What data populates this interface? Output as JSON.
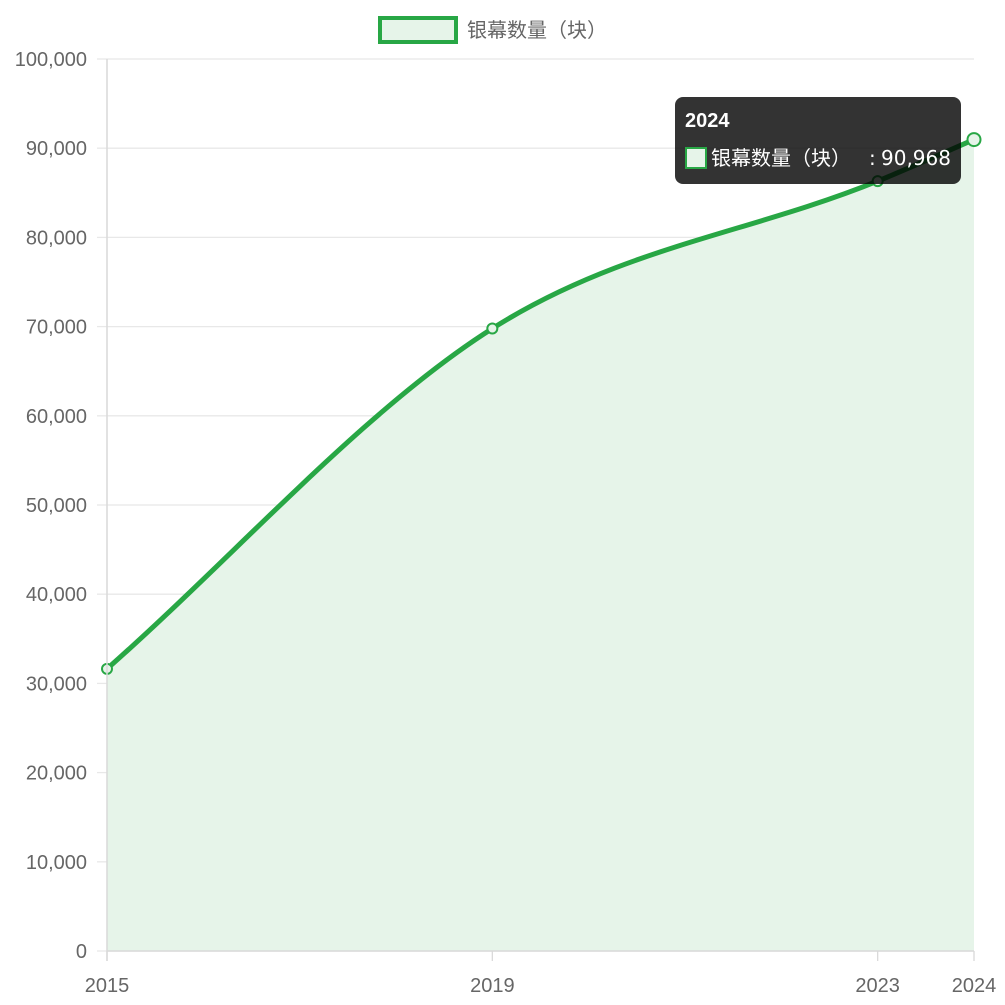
{
  "chart_data": {
    "type": "area",
    "categories": [
      "2015",
      "2019",
      "2023",
      "2024"
    ],
    "series": [
      {
        "name": "银幕数量（块）",
        "values": [
          31627,
          69787,
          86310,
          90968
        ]
      }
    ],
    "ylim": [
      0,
      100000
    ],
    "y_ticks": [
      "0",
      "10,000",
      "20,000",
      "30,000",
      "40,000",
      "50,000",
      "60,000",
      "70,000",
      "80,000",
      "90,000",
      "100,000"
    ],
    "grid": true,
    "legend_position": "top",
    "colors": {
      "line": "#28a745",
      "fill": "#e6f4e9",
      "grid": "#e8e8e8"
    },
    "tooltip": {
      "title": "2024",
      "label": "银幕数量（块）",
      "separator": ":",
      "value": "90,968"
    }
  }
}
